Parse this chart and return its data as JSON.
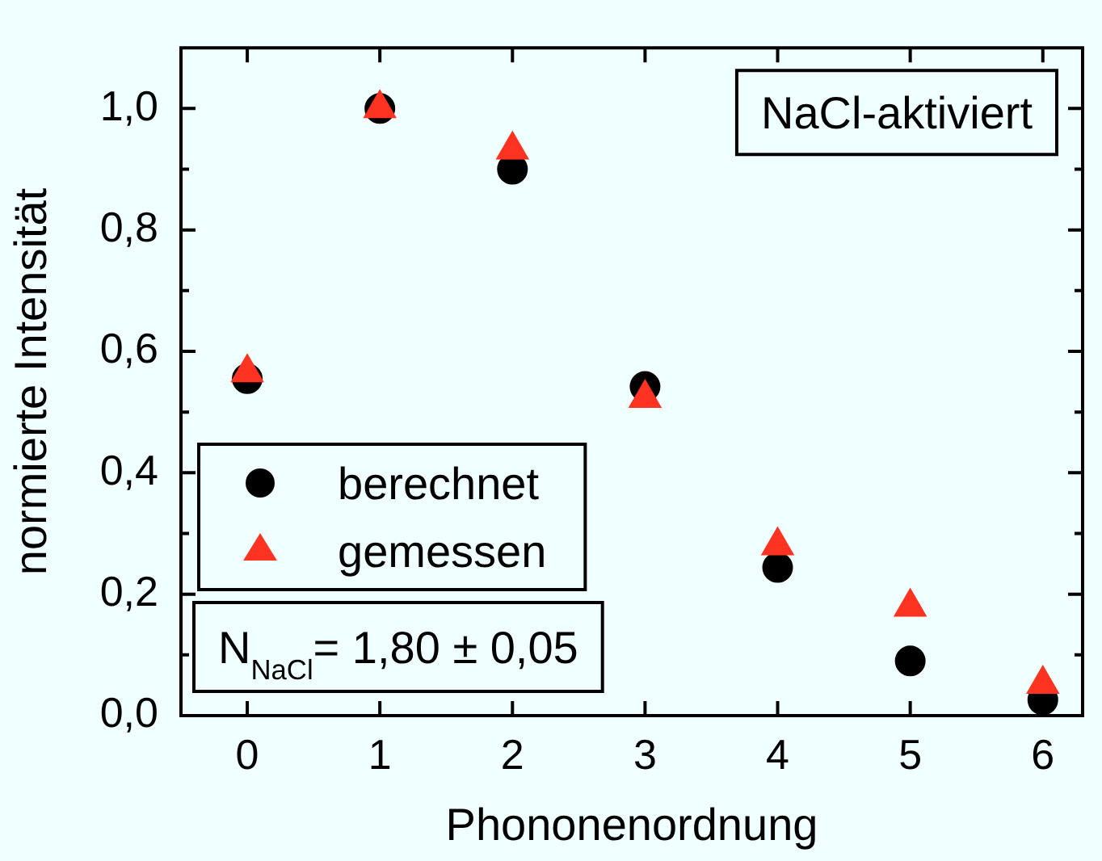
{
  "chart_data": {
    "type": "scatter",
    "xlabel": "Phononenordnung",
    "ylabel": "normierte Intensität",
    "x": [
      0,
      1,
      2,
      3,
      4,
      5,
      6
    ],
    "series": [
      {
        "name": "berechnet",
        "color": "#000000",
        "marker": "circle",
        "values": [
          0.555,
          1.0,
          0.9,
          0.542,
          0.244,
          0.09,
          0.026
        ]
      },
      {
        "name": "gemessen",
        "color": "#ff3322",
        "marker": "triangle",
        "values": [
          0.565,
          1.0,
          0.932,
          0.523,
          0.28,
          0.179,
          0.052
        ]
      }
    ],
    "xlim": [
      -0.5,
      6.3
    ],
    "xticks": [
      0,
      1,
      2,
      3,
      4,
      5,
      6
    ],
    "ylim": [
      0,
      1.1
    ],
    "yticks": [
      {
        "value": 0,
        "label": "0,0"
      },
      {
        "value": 0.1,
        "label": null
      },
      {
        "value": 0.2,
        "label": "0,2"
      },
      {
        "value": 0.3,
        "label": null
      },
      {
        "value": 0.4,
        "label": "0,4"
      },
      {
        "value": 0.5,
        "label": null
      },
      {
        "value": 0.6,
        "label": "0,6"
      },
      {
        "value": 0.7,
        "label": null
      },
      {
        "value": 0.8,
        "label": "0,8"
      },
      {
        "value": 0.9,
        "label": null
      },
      {
        "value": 1.0,
        "label": "1,0"
      }
    ],
    "grid": false,
    "legend": "bottom left",
    "annotations": [
      "NaCl-aktiviert",
      "N$_{NaCl}$= 1,80 ± 0,05"
    ]
  }
}
